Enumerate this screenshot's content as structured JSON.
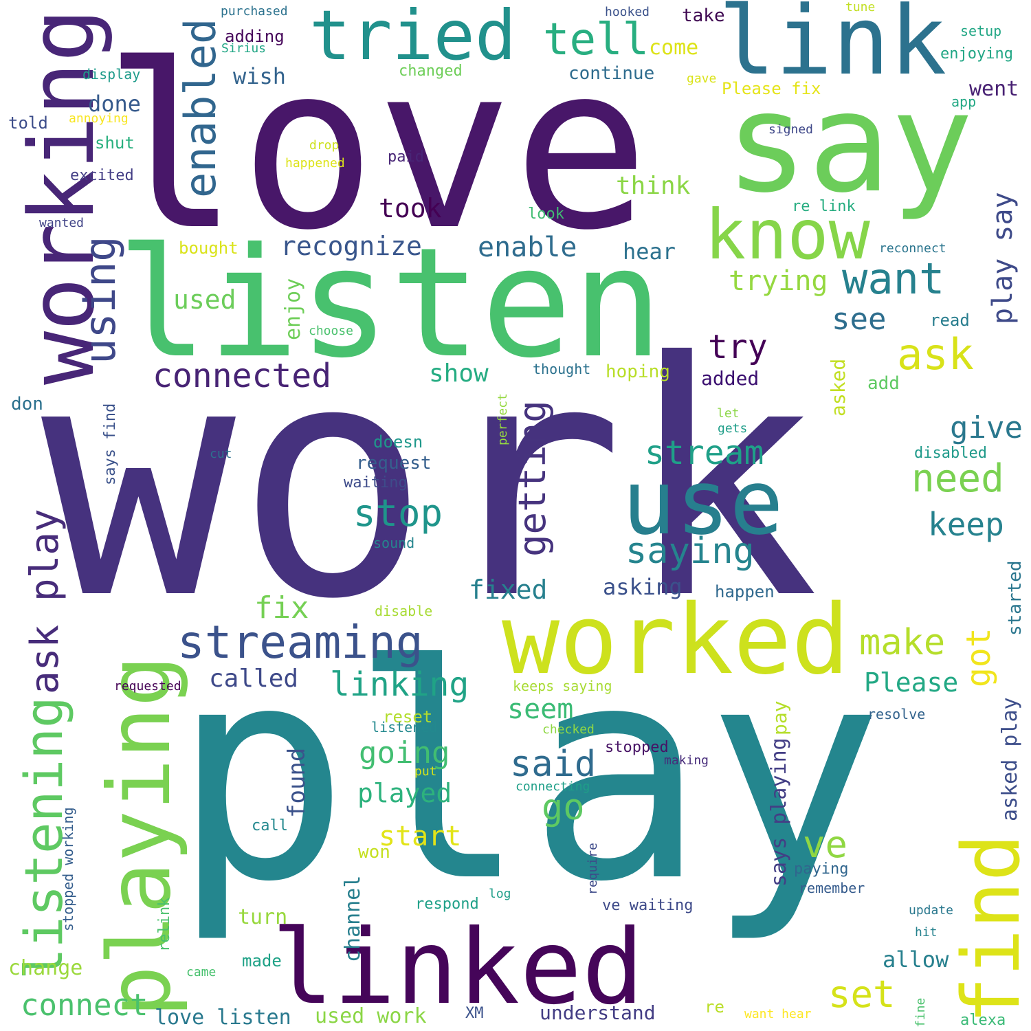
{
  "colors": {
    "background": "#ffffff",
    "palette": [
      "#440154",
      "#482878",
      "#3e4989",
      "#31688e",
      "#26828e",
      "#1f9e89",
      "#35b779",
      "#6ece58",
      "#b5de2b",
      "#fde725"
    ]
  },
  "words": [
    {
      "text": "work",
      "color": "#46327e"
    },
    {
      "text": "play",
      "color": "#24868e"
    },
    {
      "text": "love",
      "color": "#481769"
    },
    {
      "text": "listen",
      "color": "#48c16e"
    },
    {
      "text": "say",
      "color": "#6ccd5a"
    },
    {
      "text": "link",
      "color": "#2c728e"
    },
    {
      "text": "tried",
      "color": "#21918c"
    },
    {
      "text": "working",
      "color": "#482677"
    },
    {
      "text": "worked",
      "color": "#cde11d"
    },
    {
      "text": "linked",
      "color": "#450559"
    },
    {
      "text": "playing",
      "color": "#7ad151"
    },
    {
      "text": "know",
      "color": "#86d549"
    },
    {
      "text": "use",
      "color": "#277f8e"
    },
    {
      "text": "tell",
      "color": "#28ae80"
    },
    {
      "text": "find",
      "color": "#dde318"
    },
    {
      "text": "enabled",
      "color": "#31668e"
    },
    {
      "text": "using",
      "color": "#3f4889"
    },
    {
      "text": "streaming",
      "color": "#3b528b"
    },
    {
      "text": "listening",
      "color": "#5ec962"
    },
    {
      "text": "want",
      "color": "#26818e"
    },
    {
      "text": "ask",
      "color": "#d8e219"
    },
    {
      "text": "connected",
      "color": "#482475"
    },
    {
      "text": "linking",
      "color": "#20a386"
    },
    {
      "text": "ask play",
      "color": "#472c7a"
    },
    {
      "text": "getting",
      "color": "#46337e"
    },
    {
      "text": "stream",
      "color": "#1fa088"
    },
    {
      "text": "need",
      "color": "#7ad151"
    },
    {
      "text": "stop",
      "color": "#1f958b"
    },
    {
      "text": "saying",
      "color": "#25848e"
    },
    {
      "text": "recognize",
      "color": "#39568c"
    },
    {
      "text": "enable",
      "color": "#2f6c8e"
    },
    {
      "text": "play say",
      "color": "#3e4a89"
    },
    {
      "text": "try",
      "color": "#440256"
    },
    {
      "text": "see",
      "color": "#2e6e8e"
    },
    {
      "text": "trying",
      "color": "#95d840"
    },
    {
      "text": "said",
      "color": "#2f6b8e"
    },
    {
      "text": "got",
      "color": "#f1e51d"
    },
    {
      "text": "make",
      "color": "#b5de2b"
    },
    {
      "text": "go",
      "color": "#5ec962"
    },
    {
      "text": "ve",
      "color": "#90d743"
    },
    {
      "text": "set",
      "color": "#d5e21a"
    },
    {
      "text": "keep",
      "color": "#26828e"
    },
    {
      "text": "give",
      "color": "#2a788e"
    },
    {
      "text": "going",
      "color": "#42be71"
    },
    {
      "text": "connect",
      "color": "#4ac16d"
    },
    {
      "text": "fix",
      "color": "#75d054"
    },
    {
      "text": "played",
      "color": "#2db27d"
    },
    {
      "text": "start",
      "color": "#e2e418"
    },
    {
      "text": "seem",
      "color": "#3bbb75"
    },
    {
      "text": "Please",
      "color": "#22a884"
    },
    {
      "text": "used",
      "color": "#6ccd5a"
    },
    {
      "text": "show",
      "color": "#25ac82"
    },
    {
      "text": "took",
      "color": "#440154"
    },
    {
      "text": "fixed",
      "color": "#27808e"
    },
    {
      "text": "called",
      "color": "#3e4989"
    },
    {
      "text": "asking",
      "color": "#3b518b"
    },
    {
      "text": "asked play",
      "color": "#3d4e8a"
    },
    {
      "text": "says playing",
      "color": "#433e85"
    },
    {
      "text": "enjoy",
      "color": "#6ece58"
    },
    {
      "text": "found",
      "color": "#3b528b"
    },
    {
      "text": "done",
      "color": "#375b8d"
    },
    {
      "text": "wish",
      "color": "#33638d"
    },
    {
      "text": "hear",
      "color": "#2c718e"
    },
    {
      "text": "think",
      "color": "#8bd646"
    },
    {
      "text": "turn",
      "color": "#98d83e"
    },
    {
      "text": "allow",
      "color": "#27808e"
    },
    {
      "text": "change",
      "color": "#9bd93c"
    },
    {
      "text": "come",
      "color": "#dde318"
    },
    {
      "text": "went",
      "color": "#482173"
    },
    {
      "text": "asked",
      "color": "#c2df23"
    },
    {
      "text": "added",
      "color": "#3b0f70"
    },
    {
      "text": "love listen",
      "color": "#29798e"
    },
    {
      "text": "used work",
      "color": "#8bd646"
    },
    {
      "text": "understand",
      "color": "#433d84"
    },
    {
      "text": "channel",
      "color": "#277f8e"
    },
    {
      "text": "started",
      "color": "#2a768e"
    },
    {
      "text": "hoping",
      "color": "#b8de29"
    },
    {
      "text": "won",
      "color": "#c5e021"
    },
    {
      "text": "take",
      "color": "#3e0751"
    },
    {
      "text": "continue",
      "color": "#2f6c8e"
    },
    {
      "text": "request",
      "color": "#355f8d"
    },
    {
      "text": "doesn",
      "color": "#1f988b"
    },
    {
      "text": "pay",
      "color": "#b5de2b"
    },
    {
      "text": "made",
      "color": "#1fa287"
    },
    {
      "text": "says find",
      "color": "#3b528b"
    },
    {
      "text": "Please fix",
      "color": "#e5e419"
    },
    {
      "text": "happen",
      "color": "#30698e"
    },
    {
      "text": "stopped working",
      "color": "#355e8d"
    },
    {
      "text": "waiting",
      "color": "#3e4c8a"
    },
    {
      "text": "adding",
      "color": "#46075a"
    },
    {
      "text": "ve waiting",
      "color": "#3e4a89"
    },
    {
      "text": "reset",
      "color": "#b2dd2d"
    },
    {
      "text": "respond",
      "color": "#1fa088"
    },
    {
      "text": "re",
      "color": "#bade28"
    },
    {
      "text": "stopped",
      "color": "#471365"
    },
    {
      "text": "paying",
      "color": "#31668e"
    },
    {
      "text": "read",
      "color": "#287d8e"
    },
    {
      "text": "add",
      "color": "#5ec962"
    },
    {
      "text": "look",
      "color": "#40bd72"
    },
    {
      "text": "re link",
      "color": "#27ad81"
    },
    {
      "text": "XM",
      "color": "#3b528b"
    },
    {
      "text": "remember",
      "color": "#365c8d"
    },
    {
      "text": "alexa",
      "color": "#3aba76"
    },
    {
      "text": "relink",
      "color": "#4ac16d"
    },
    {
      "text": "bought",
      "color": "#dae319"
    },
    {
      "text": "don",
      "color": "#2c718e"
    },
    {
      "text": "told",
      "color": "#3d4d8a"
    },
    {
      "text": "shut",
      "color": "#2ab07f"
    },
    {
      "text": "excited",
      "color": "#433e85"
    },
    {
      "text": "paid",
      "color": "#482576"
    },
    {
      "text": "enjoying",
      "color": "#21a685"
    },
    {
      "text": "purchased",
      "color": "#2c728e"
    },
    {
      "text": "Sirius",
      "color": "#21a685"
    },
    {
      "text": "hooked",
      "color": "#3b528b"
    },
    {
      "text": "changed",
      "color": "#6ece58"
    },
    {
      "text": "display",
      "color": "#1e9b8a"
    },
    {
      "text": "annoying",
      "color": "#f8e621"
    },
    {
      "text": "wanted",
      "color": "#414487"
    },
    {
      "text": "drop",
      "color": "#cde11d"
    },
    {
      "text": "happened",
      "color": "#dde318"
    },
    {
      "text": "choose",
      "color": "#4ac16d"
    },
    {
      "text": "thought",
      "color": "#2c728e"
    },
    {
      "text": "perfect",
      "color": "#95d840"
    },
    {
      "text": "cut",
      "color": "#2d708e"
    },
    {
      "text": "sound",
      "color": "#25858e"
    },
    {
      "text": "disable",
      "color": "#a8db34"
    },
    {
      "text": "listened",
      "color": "#23898e"
    },
    {
      "text": "put",
      "color": "#d2e21b"
    },
    {
      "text": "connecting",
      "color": "#1f9f88"
    },
    {
      "text": "call",
      "color": "#23888e"
    },
    {
      "text": "requested",
      "color": "#440154"
    },
    {
      "text": "keeps saying",
      "color": "#a8db34"
    },
    {
      "text": "checked",
      "color": "#8fd744"
    },
    {
      "text": "making",
      "color": "#472c7a"
    },
    {
      "text": "log",
      "color": "#1f9e89"
    },
    {
      "text": "require",
      "color": "#3e4a89"
    },
    {
      "text": "tune",
      "color": "#c2df23"
    },
    {
      "text": "setup",
      "color": "#22a785"
    },
    {
      "text": "gave",
      "color": "#dae319"
    },
    {
      "text": "app",
      "color": "#22a884"
    },
    {
      "text": "signed",
      "color": "#3f4889"
    },
    {
      "text": "reconnect",
      "color": "#2b758e"
    },
    {
      "text": "let",
      "color": "#8bd646"
    },
    {
      "text": "gets",
      "color": "#1f9e89"
    },
    {
      "text": "disabled",
      "color": "#1f9a8a"
    },
    {
      "text": "resolve",
      "color": "#33638d"
    },
    {
      "text": "update",
      "color": "#2a788e"
    },
    {
      "text": "hit",
      "color": "#26828e"
    },
    {
      "text": "came",
      "color": "#48c16e"
    },
    {
      "text": "want hear",
      "color": "#fde725"
    },
    {
      "text": "fine",
      "color": "#4ac16d"
    }
  ]
}
